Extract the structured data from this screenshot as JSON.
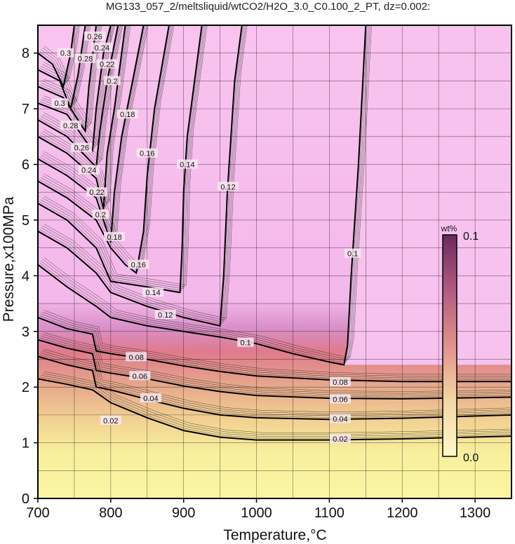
{
  "title": "MG133_057_2/meltsliquid/wtCO2/H2O_3.0_C0.100_2_PT, dz=0.002:",
  "chart_data": {
    "type": "heatmap",
    "title": "MG133_057_2/meltsliquid/wtCO2/H2O_3.0_C0.100_2_PT, dz=0.002:",
    "xlabel": "Temperature,°C",
    "ylabel": "Pressure,x100MPa",
    "xlim": [
      700,
      1350
    ],
    "ylim": [
      0,
      8.5
    ],
    "x_ticks": [
      700,
      800,
      900,
      1000,
      1100,
      1200,
      1300
    ],
    "y_ticks": [
      0,
      1,
      2,
      3,
      4,
      5,
      6,
      7,
      8
    ],
    "grid": true,
    "colorbar": {
      "unit": "wt%",
      "min": 0.0,
      "max": 0.1,
      "min_label": "0.0",
      "max_label": "0.1",
      "colors": [
        "#fff9b0",
        "#f2c79c",
        "#e28f86",
        "#b35a7a",
        "#6a2a5a"
      ]
    },
    "contours": [
      {
        "level": "0.02",
        "points": [
          [
            700,
            2.15
          ],
          [
            740,
            2.05
          ],
          [
            775,
            1.95
          ],
          [
            800,
            1.72
          ],
          [
            850,
            1.45
          ],
          [
            900,
            1.22
          ],
          [
            950,
            1.1
          ],
          [
            1000,
            1.05
          ],
          [
            1100,
            1.05
          ],
          [
            1200,
            1.07
          ],
          [
            1350,
            1.12
          ]
        ],
        "label_at": [
          [
            800,
            1.4
          ],
          [
            1115,
            1.07
          ]
        ]
      },
      {
        "level": "0.04",
        "points": [
          [
            700,
            2.55
          ],
          [
            740,
            2.4
          ],
          [
            775,
            2.3
          ],
          [
            780,
            2.0
          ],
          [
            800,
            1.95
          ],
          [
            850,
            1.78
          ],
          [
            900,
            1.62
          ],
          [
            950,
            1.5
          ],
          [
            1000,
            1.45
          ],
          [
            1100,
            1.42
          ],
          [
            1200,
            1.44
          ],
          [
            1350,
            1.5
          ]
        ],
        "label_at": [
          [
            855,
            1.8
          ],
          [
            1115,
            1.43
          ]
        ]
      },
      {
        "level": "0.06",
        "points": [
          [
            700,
            2.85
          ],
          [
            740,
            2.7
          ],
          [
            775,
            2.6
          ],
          [
            780,
            2.3
          ],
          [
            800,
            2.25
          ],
          [
            850,
            2.15
          ],
          [
            900,
            2.02
          ],
          [
            950,
            1.92
          ],
          [
            1000,
            1.85
          ],
          [
            1100,
            1.8
          ],
          [
            1200,
            1.79
          ],
          [
            1350,
            1.82
          ]
        ],
        "label_at": [
          [
            840,
            2.2
          ],
          [
            1115,
            1.78
          ]
        ]
      },
      {
        "level": "0.08",
        "points": [
          [
            700,
            3.25
          ],
          [
            740,
            3.05
          ],
          [
            775,
            2.95
          ],
          [
            780,
            2.65
          ],
          [
            800,
            2.6
          ],
          [
            850,
            2.5
          ],
          [
            900,
            2.38
          ],
          [
            950,
            2.28
          ],
          [
            1000,
            2.2
          ],
          [
            1100,
            2.13
          ],
          [
            1200,
            2.1
          ],
          [
            1350,
            2.1
          ]
        ],
        "label_at": [
          [
            835,
            2.54
          ],
          [
            1115,
            2.09
          ]
        ]
      },
      {
        "level": "0.1",
        "points": [
          [
            700,
            4.2
          ],
          [
            740,
            3.8
          ],
          [
            780,
            3.45
          ],
          [
            800,
            3.25
          ],
          [
            850,
            3.1
          ],
          [
            900,
            3.0
          ],
          [
            950,
            2.9
          ],
          [
            1000,
            2.78
          ],
          [
            1050,
            2.6
          ],
          [
            1100,
            2.45
          ],
          [
            1120,
            2.4
          ],
          [
            1125,
            2.75
          ],
          [
            1130,
            4.0
          ],
          [
            1140,
            6.0
          ],
          [
            1150,
            8.5
          ]
        ],
        "label_at": [
          [
            985,
            2.8
          ],
          [
            1132,
            4.4
          ]
        ]
      },
      {
        "level": "0.12",
        "points": [
          [
            700,
            4.8
          ],
          [
            740,
            4.5
          ],
          [
            780,
            4.05
          ],
          [
            800,
            3.7
          ],
          [
            850,
            3.45
          ],
          [
            900,
            3.25
          ],
          [
            950,
            3.1
          ],
          [
            955,
            4.0
          ],
          [
            960,
            5.5
          ],
          [
            965,
            6.5
          ],
          [
            970,
            7.5
          ],
          [
            980,
            8.5
          ]
        ],
        "label_at": [
          [
            875,
            3.3
          ],
          [
            961,
            5.6
          ]
        ]
      },
      {
        "level": "0.14",
        "points": [
          [
            700,
            5.3
          ],
          [
            740,
            5.0
          ],
          [
            780,
            4.5
          ],
          [
            800,
            3.9
          ],
          [
            850,
            3.8
          ],
          [
            895,
            3.7
          ],
          [
            898,
            4.5
          ],
          [
            900,
            5.5
          ],
          [
            905,
            6.5
          ],
          [
            915,
            7.5
          ],
          [
            925,
            8.5
          ]
        ],
        "label_at": [
          [
            858,
            3.7
          ],
          [
            905,
            6.0
          ]
        ]
      },
      {
        "level": "0.16",
        "points": [
          [
            700,
            5.7
          ],
          [
            740,
            5.4
          ],
          [
            780,
            5.0
          ],
          [
            800,
            4.5
          ],
          [
            820,
            4.2
          ],
          [
            835,
            4.05
          ],
          [
            845,
            4.8
          ],
          [
            850,
            5.8
          ],
          [
            860,
            7.0
          ],
          [
            880,
            8.5
          ]
        ],
        "label_at": [
          [
            838,
            4.2
          ],
          [
            850,
            6.2
          ]
        ]
      },
      {
        "level": "0.18",
        "points": [
          [
            700,
            6.1
          ],
          [
            740,
            5.8
          ],
          [
            780,
            5.4
          ],
          [
            790,
            5.0
          ],
          [
            800,
            4.6
          ],
          [
            805,
            5.5
          ],
          [
            815,
            6.5
          ],
          [
            830,
            7.5
          ],
          [
            845,
            8.5
          ]
        ],
        "label_at": [
          [
            805,
            4.7
          ],
          [
            823,
            6.9
          ]
        ]
      },
      {
        "level": "0.2",
        "points": [
          [
            700,
            6.5
          ],
          [
            740,
            6.2
          ],
          [
            780,
            5.75
          ],
          [
            790,
            5.2
          ],
          [
            795,
            6.2
          ],
          [
            805,
            7.0
          ],
          [
            820,
            8.5
          ]
        ],
        "label_at": [
          [
            786,
            5.1
          ],
          [
            802,
            7.5
          ]
        ]
      },
      {
        "level": "0.22",
        "points": [
          [
            700,
            6.8
          ],
          [
            740,
            6.5
          ],
          [
            780,
            5.95
          ],
          [
            785,
            6.6
          ],
          [
            795,
            7.5
          ],
          [
            810,
            8.5
          ]
        ],
        "label_at": [
          [
            781,
            5.5
          ],
          [
            795,
            7.8
          ]
        ]
      },
      {
        "level": "0.24",
        "points": [
          [
            700,
            7.1
          ],
          [
            740,
            6.9
          ],
          [
            775,
            6.25
          ],
          [
            780,
            7.0
          ],
          [
            790,
            8.0
          ],
          [
            800,
            8.5
          ]
        ],
        "label_at": [
          [
            770,
            5.9
          ],
          [
            788,
            8.1
          ]
        ]
      },
      {
        "level": "0.26",
        "points": [
          [
            700,
            7.4
          ],
          [
            735,
            7.2
          ],
          [
            765,
            6.6
          ],
          [
            770,
            7.4
          ],
          [
            780,
            8.5
          ]
        ],
        "label_at": [
          [
            760,
            6.3
          ],
          [
            778,
            8.3
          ]
        ]
      },
      {
        "level": "0.28",
        "points": [
          [
            700,
            7.7
          ],
          [
            730,
            7.5
          ],
          [
            745,
            7.0
          ],
          [
            755,
            7.6
          ],
          [
            765,
            8.5
          ]
        ],
        "label_at": [
          [
            745,
            6.7
          ],
          [
            765,
            7.9
          ]
        ]
      },
      {
        "level": "0.3",
        "points": [
          [
            700,
            8.0
          ],
          [
            720,
            7.8
          ],
          [
            735,
            7.4
          ],
          [
            745,
            8.0
          ],
          [
            750,
            8.5
          ]
        ],
        "label_at": [
          [
            730,
            7.1
          ],
          [
            738,
            8.0
          ]
        ]
      }
    ]
  }
}
